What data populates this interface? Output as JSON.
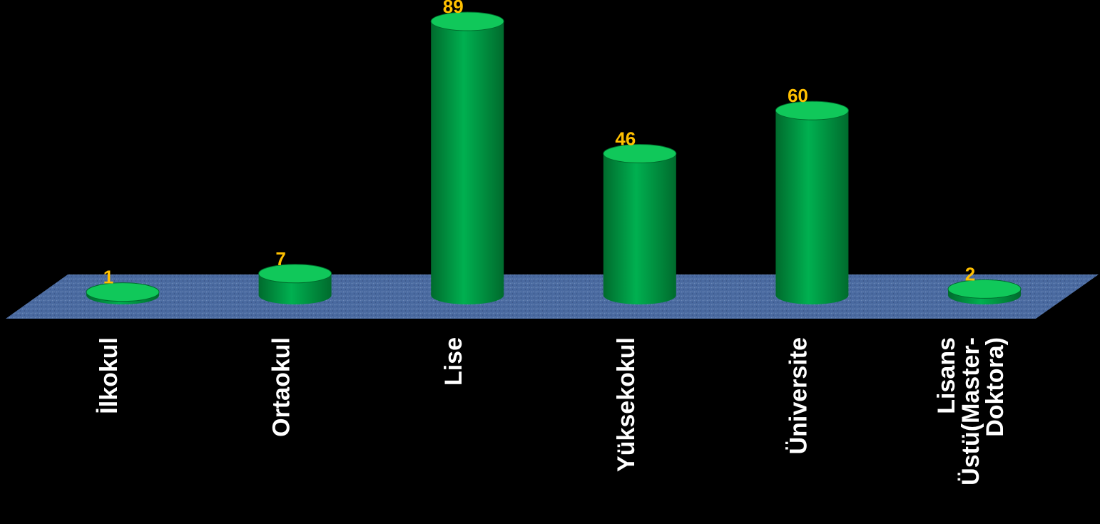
{
  "chart_data": {
    "type": "bar",
    "style": "3d-cylinder",
    "categories": [
      "İlkokul",
      "Ortaokul",
      "Lise",
      "Yüksekokul",
      "Üniversite",
      "Lisans Üstü(Master-Doktora)"
    ],
    "category_lines": [
      [
        "İlkokul"
      ],
      [
        "Ortaokul"
      ],
      [
        "Lise"
      ],
      [
        "Yüksekokul"
      ],
      [
        "Üniversite"
      ],
      [
        "Lisans",
        "Üstü(Master-",
        "Doktora)"
      ]
    ],
    "values": [
      1,
      7,
      89,
      46,
      60,
      2
    ],
    "ylim": [
      0,
      89
    ],
    "grid": false,
    "legend": "none",
    "colors": {
      "background": "#000000",
      "bar": "#00b050",
      "bar_dark": "#006b2d",
      "bar_top": "#10c85a",
      "floor": "#4a6aa0",
      "value_label": "#ffc000",
      "category_label": "#ffffff"
    }
  }
}
